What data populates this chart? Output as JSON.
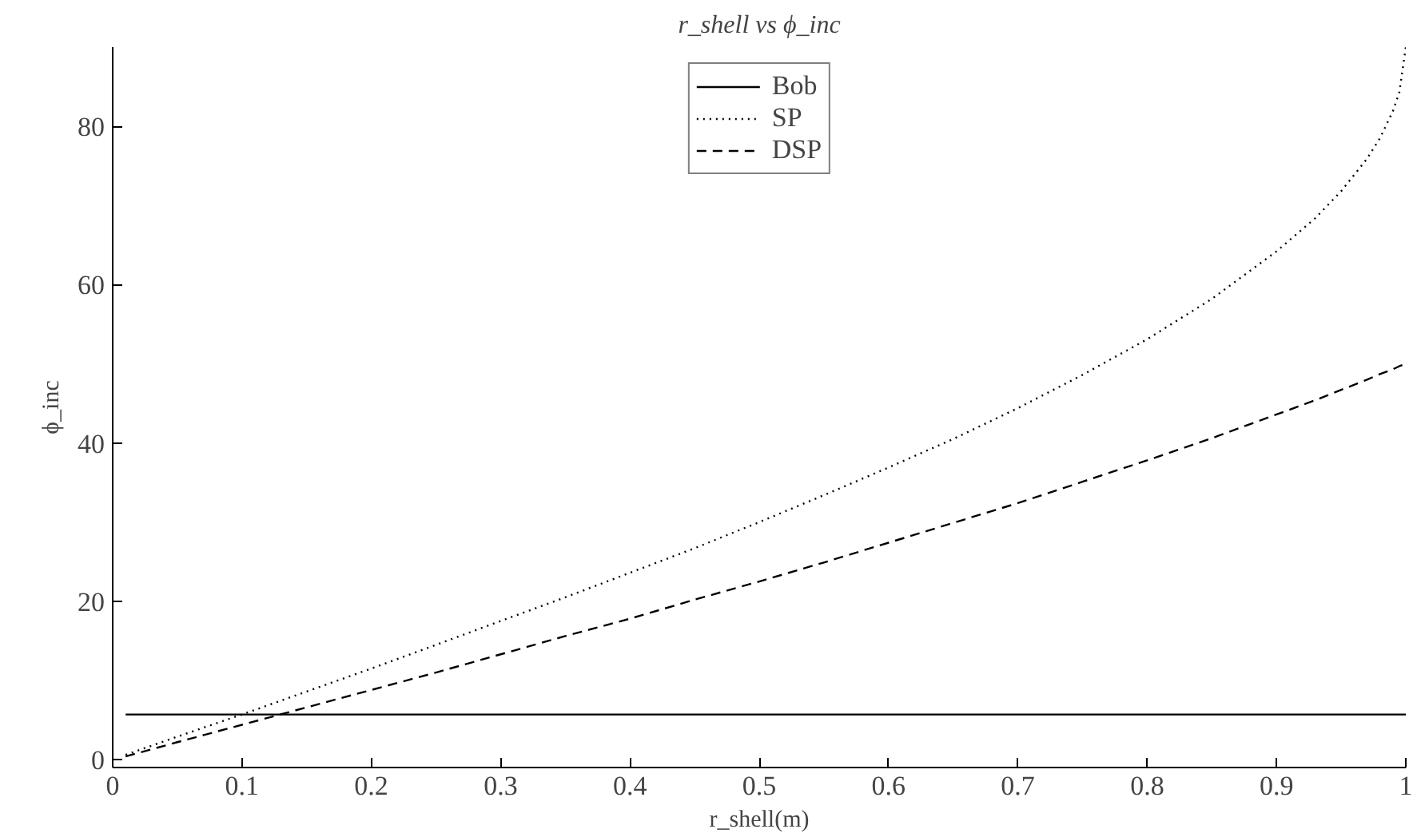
{
  "chart_data": {
    "type": "line",
    "title": "r_shell vs ϕ_inc",
    "xlabel": "r_shell(m)",
    "ylabel": "ϕ_inc",
    "xlim": [
      0,
      1
    ],
    "ylim": [
      -1,
      90
    ],
    "xticks": [
      0,
      0.1,
      0.2,
      0.3,
      0.4,
      0.5,
      0.6,
      0.7,
      0.8,
      0.9,
      1
    ],
    "yticks": [
      0,
      20,
      40,
      60,
      80
    ],
    "grid": false,
    "legend": "top",
    "marker": "none",
    "x": [
      0.01,
      0.05,
      0.1,
      0.15,
      0.2,
      0.25,
      0.3,
      0.35,
      0.4,
      0.45,
      0.5,
      0.55,
      0.6,
      0.65,
      0.7,
      0.75,
      0.8,
      0.85,
      0.9,
      0.93,
      0.95,
      0.97,
      0.98,
      0.99,
      0.995,
      1
    ],
    "series": [
      {
        "name": "Bob",
        "color": "#000000",
        "line_style": "solid",
        "x": [
          0.01,
          1
        ],
        "values": [
          5.7,
          5.7
        ]
      },
      {
        "name": "SP",
        "color": "#000000",
        "line_style": "dotted",
        "values": [
          0.6,
          2.9,
          5.7,
          8.6,
          11.5,
          14.5,
          17.5,
          20.5,
          23.6,
          26.7,
          30.0,
          33.4,
          36.9,
          40.5,
          44.4,
          48.6,
          53.1,
          58.2,
          64.2,
          68.4,
          71.8,
          75.9,
          78.5,
          81.9,
          84.3,
          90.0
        ]
      },
      {
        "name": "DSP",
        "color": "#000000",
        "line_style": "dashed",
        "values": [
          0.4,
          2.2,
          4.4,
          6.6,
          8.8,
          11.0,
          13.3,
          15.6,
          17.8,
          20.2,
          22.5,
          24.9,
          27.4,
          29.9,
          32.4,
          35.1,
          37.8,
          40.6,
          43.6,
          45.4,
          46.7,
          48.0,
          48.7,
          49.3,
          49.7,
          50.0
        ]
      }
    ]
  }
}
